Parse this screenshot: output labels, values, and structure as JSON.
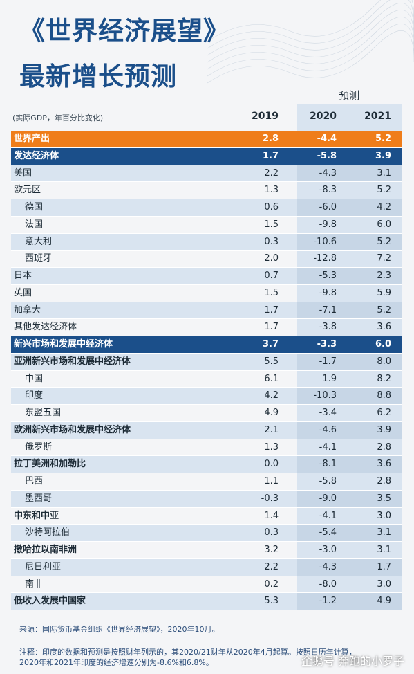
{
  "title_line1": "《世界经济展望》",
  "title_line2": "最新增长预测",
  "forecast_label": "预测",
  "unit_note": "(实际GDP，年百分比变化)",
  "years": [
    "2019",
    "2020",
    "2021"
  ],
  "rows": [
    {
      "label": "世界产出",
      "v": [
        "2.8",
        "-4.4",
        "5.2"
      ],
      "style": "world"
    },
    {
      "label": "发达经济体",
      "v": [
        "1.7",
        "-5.8",
        "3.9"
      ],
      "style": "adv"
    },
    {
      "label": "美国",
      "v": [
        "2.2",
        "-4.3",
        "3.1"
      ],
      "style": "stripe"
    },
    {
      "label": "欧元区",
      "v": [
        "1.3",
        "-8.3",
        "5.2"
      ],
      "style": "white"
    },
    {
      "label": "德国",
      "v": [
        "0.6",
        "-6.0",
        "4.2"
      ],
      "style": "stripe indent"
    },
    {
      "label": "法国",
      "v": [
        "1.5",
        "-9.8",
        "6.0"
      ],
      "style": "white indent"
    },
    {
      "label": "意大利",
      "v": [
        "0.3",
        "-10.6",
        "5.2"
      ],
      "style": "stripe indent"
    },
    {
      "label": "西班牙",
      "v": [
        "2.0",
        "-12.8",
        "7.2"
      ],
      "style": "white indent"
    },
    {
      "label": "日本",
      "v": [
        "0.7",
        "-5.3",
        "2.3"
      ],
      "style": "stripe"
    },
    {
      "label": "英国",
      "v": [
        "1.5",
        "-9.8",
        "5.9"
      ],
      "style": "white"
    },
    {
      "label": "加拿大",
      "v": [
        "1.7",
        "-7.1",
        "5.2"
      ],
      "style": "stripe"
    },
    {
      "label": "其他发达经济体",
      "v": [
        "1.7",
        "-3.8",
        "3.6"
      ],
      "style": "white"
    },
    {
      "label": "新兴市场和发展中经济体",
      "v": [
        "3.7",
        "-3.3",
        "6.0"
      ],
      "style": "adv"
    },
    {
      "label": "亚洲新兴市场和发展中经济体",
      "v": [
        "5.5",
        "-1.7",
        "8.0"
      ],
      "style": "stripe bold"
    },
    {
      "label": "中国",
      "v": [
        "6.1",
        "1.9",
        "8.2"
      ],
      "style": "white indent"
    },
    {
      "label": "印度",
      "v": [
        "4.2",
        "-10.3",
        "8.8"
      ],
      "style": "stripe indent"
    },
    {
      "label": "东盟五国",
      "v": [
        "4.9",
        "-3.4",
        "6.2"
      ],
      "style": "white indent"
    },
    {
      "label": "欧洲新兴市场和发展中经济体",
      "v": [
        "2.1",
        "-4.6",
        "3.9"
      ],
      "style": "stripe bold"
    },
    {
      "label": "俄罗斯",
      "v": [
        "1.3",
        "-4.1",
        "2.8"
      ],
      "style": "white indent"
    },
    {
      "label": "拉丁美洲和加勒比",
      "v": [
        "0.0",
        "-8.1",
        "3.6"
      ],
      "style": "stripe bold"
    },
    {
      "label": "巴西",
      "v": [
        "1.1",
        "-5.8",
        "2.8"
      ],
      "style": "white indent"
    },
    {
      "label": "墨西哥",
      "v": [
        "-0.3",
        "-9.0",
        "3.5"
      ],
      "style": "stripe indent"
    },
    {
      "label": "中东和中亚",
      "v": [
        "1.4",
        "-4.1",
        "3.0"
      ],
      "style": "white bold"
    },
    {
      "label": "沙特阿拉伯",
      "v": [
        "0.3",
        "-5.4",
        "3.1"
      ],
      "style": "stripe indent"
    },
    {
      "label": "撒哈拉以南非洲",
      "v": [
        "3.2",
        "-3.0",
        "3.1"
      ],
      "style": "white bold"
    },
    {
      "label": "尼日利亚",
      "v": [
        "2.2",
        "-4.3",
        "1.7"
      ],
      "style": "stripe indent"
    },
    {
      "label": "南非",
      "v": [
        "0.2",
        "-8.0",
        "3.0"
      ],
      "style": "white indent"
    },
    {
      "label": "低收入发展中国家",
      "v": [
        "5.3",
        "-1.2",
        "4.9"
      ],
      "style": "stripe bold"
    }
  ],
  "source": "来源：国际货币基金组织《世界经济展望》，2020年10月。",
  "note_line1": "注释：印度的数据和预测是按照财年列示的，其2020/21财年从2020年4月起算。按照日历年计算，",
  "note_line2": "2020年和2021年印度的经济增速分别为-8.6%和6.8%。",
  "watermark": "企鹅号 奔跑的小罗子",
  "colors": {
    "world": "#ef7d1a",
    "advanced": "#1b4f8a",
    "stripe": "#d9e4f0",
    "title": "#1b4f8a"
  }
}
